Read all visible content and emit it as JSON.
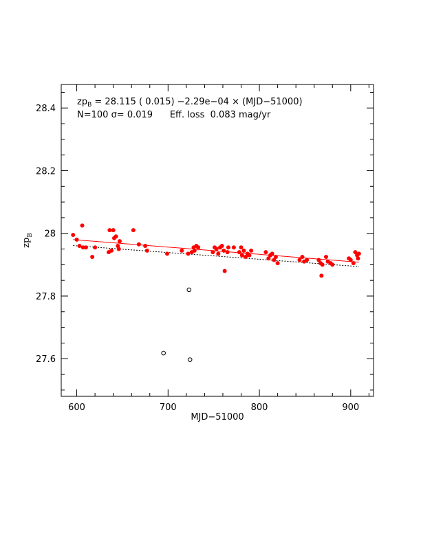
{
  "chart_data": {
    "type": "scatter",
    "title": "",
    "xlabel": "MJD−51000",
    "ylabel": "zp",
    "ylabel_subscript": "B",
    "xlim": [
      583,
      925
    ],
    "ylim": [
      27.48,
      28.475
    ],
    "xticks": [
      600,
      700,
      800,
      900
    ],
    "xtick_labels": [
      "600",
      "700",
      "800",
      "900"
    ],
    "yticks": [
      27.6,
      27.8,
      28.0,
      28.2,
      28.4
    ],
    "ytick_labels": [
      "27.6",
      "27.8",
      "28",
      "28.2",
      "28.4"
    ],
    "annotation_line1": {
      "prefix": "zp",
      "subscript": "B",
      "text": " = 28.115 ( 0.015) −2.29e−04  × (MJD−51000)"
    },
    "annotation_line2": "N=100 σ= 0.019      Eff. loss  0.083 mag/yr",
    "colors": {
      "points": "#ff0000",
      "fit_line": "#ff0000",
      "reference_line": "#000000",
      "outliers": "#000000"
    },
    "series": [
      {
        "marker": "filled-circle",
        "color": "#ff0000",
        "points": [
          [
            596,
            27.995
          ],
          [
            600,
            27.98
          ],
          [
            603,
            27.96
          ],
          [
            606,
            28.025
          ],
          [
            607,
            27.955
          ],
          [
            610,
            27.955
          ],
          [
            617,
            27.925
          ],
          [
            620,
            27.955
          ],
          [
            635,
            27.94
          ],
          [
            636,
            28.01
          ],
          [
            638,
            27.945
          ],
          [
            640,
            28.01
          ],
          [
            641,
            27.985
          ],
          [
            643,
            27.99
          ],
          [
            645,
            27.96
          ],
          [
            646,
            27.95
          ],
          [
            647,
            27.975
          ],
          [
            662,
            28.01
          ],
          [
            668,
            27.965
          ],
          [
            675,
            27.96
          ],
          [
            677,
            27.945
          ],
          [
            699,
            27.935
          ],
          [
            715,
            27.945
          ],
          [
            722,
            27.935
          ],
          [
            726,
            27.94
          ],
          [
            728,
            27.955
          ],
          [
            729,
            27.945
          ],
          [
            731,
            27.96
          ],
          [
            733,
            27.955
          ],
          [
            749,
            27.94
          ],
          [
            751,
            27.955
          ],
          [
            753,
            27.95
          ],
          [
            755,
            27.935
          ],
          [
            757,
            27.955
          ],
          [
            759,
            27.96
          ],
          [
            761,
            27.945
          ],
          [
            762,
            27.88
          ],
          [
            765,
            27.94
          ],
          [
            766,
            27.955
          ],
          [
            772,
            27.955
          ],
          [
            778,
            27.94
          ],
          [
            780,
            27.955
          ],
          [
            781,
            27.93
          ],
          [
            783,
            27.945
          ],
          [
            785,
            27.925
          ],
          [
            787,
            27.935
          ],
          [
            789,
            27.93
          ],
          [
            791,
            27.945
          ],
          [
            807,
            27.94
          ],
          [
            810,
            27.92
          ],
          [
            812,
            27.93
          ],
          [
            814,
            27.935
          ],
          [
            816,
            27.915
          ],
          [
            818,
            27.925
          ],
          [
            820,
            27.905
          ],
          [
            844,
            27.915
          ],
          [
            847,
            27.925
          ],
          [
            849,
            27.91
          ],
          [
            852,
            27.915
          ],
          [
            865,
            27.915
          ],
          [
            867,
            27.905
          ],
          [
            868,
            27.865
          ],
          [
            869,
            27.9
          ],
          [
            873,
            27.925
          ],
          [
            875,
            27.91
          ],
          [
            878,
            27.905
          ],
          [
            880,
            27.9
          ],
          [
            898,
            27.92
          ],
          [
            900,
            27.915
          ],
          [
            903,
            27.905
          ],
          [
            905,
            27.94
          ],
          [
            907,
            27.93
          ],
          [
            908,
            27.92
          ],
          [
            909,
            27.935
          ]
        ]
      },
      {
        "marker": "open-circle",
        "color": "#000000",
        "points": [
          [
            695,
            27.618
          ],
          [
            723,
            27.82
          ],
          [
            724,
            27.597
          ]
        ]
      }
    ],
    "lines": [
      {
        "style": "solid",
        "color": "#ff0000",
        "x": [
          596,
          909
        ],
        "y": [
          27.98,
          27.908
        ]
      },
      {
        "style": "dotted",
        "color": "#000000",
        "x": [
          596,
          909
        ],
        "y": [
          27.961,
          27.894
        ]
      }
    ]
  }
}
